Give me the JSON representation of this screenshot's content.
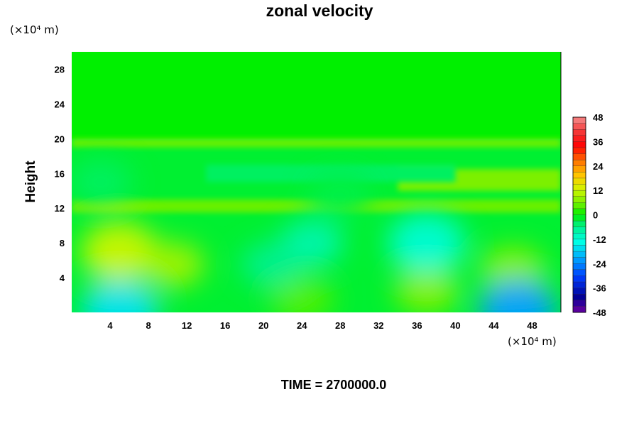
{
  "chart_data": {
    "type": "heatmap",
    "title": "zonal velocity",
    "ylabel": "Height",
    "xlabel": "",
    "x_unit_label": "(×10⁴ m)",
    "y_unit_label": "(×10⁴ m)",
    "footer": "TIME = 2700000.0",
    "xlim": [
      0,
      51
    ],
    "ylim": [
      0,
      30
    ],
    "x_ticks": [
      4,
      8,
      12,
      16,
      20,
      24,
      28,
      32,
      36,
      40,
      44,
      48
    ],
    "y_ticks": [
      4,
      8,
      12,
      16,
      20,
      24,
      28
    ],
    "colorbar": {
      "min": -48,
      "max": 48,
      "step": 3,
      "ticks": [
        48,
        36,
        24,
        12,
        0,
        -12,
        -24,
        -36,
        -48
      ]
    },
    "field": {
      "description_of_regions": [
        {
          "x_range": [
            0,
            51
          ],
          "y_range": [
            20,
            30
          ],
          "value": 0
        },
        {
          "x_range": [
            0,
            51
          ],
          "y_range": [
            19,
            20
          ],
          "value": 5
        },
        {
          "x_range": [
            0,
            51
          ],
          "y_range": [
            11.5,
            13
          ],
          "value": 5
        },
        {
          "x_range": [
            34,
            51
          ],
          "y_range": [
            14,
            16.5
          ],
          "value": 6
        },
        {
          "x_range": [
            14,
            40
          ],
          "y_range": [
            15,
            17
          ],
          "value": -4
        }
      ],
      "features": [
        {
          "x": 5,
          "y": 7,
          "value": 12
        },
        {
          "x": 10.5,
          "y": 5.5,
          "value": 9
        },
        {
          "x": 46,
          "y": 5,
          "value": 7
        },
        {
          "x": 37,
          "y": 2.5,
          "value": 7
        },
        {
          "x": 24,
          "y": 1.5,
          "value": 4
        },
        {
          "x": 37,
          "y": 8,
          "value": -12
        },
        {
          "x": 25,
          "y": 8,
          "value": -9
        },
        {
          "x": 21,
          "y": 5.5,
          "value": -6
        },
        {
          "x": 5,
          "y": 0.3,
          "value": -16
        },
        {
          "x": 46.5,
          "y": 0.3,
          "value": -22
        },
        {
          "x": 3,
          "y": 15,
          "value": -4
        },
        {
          "x": 28,
          "y": 13.5,
          "value": -3
        }
      ]
    }
  }
}
